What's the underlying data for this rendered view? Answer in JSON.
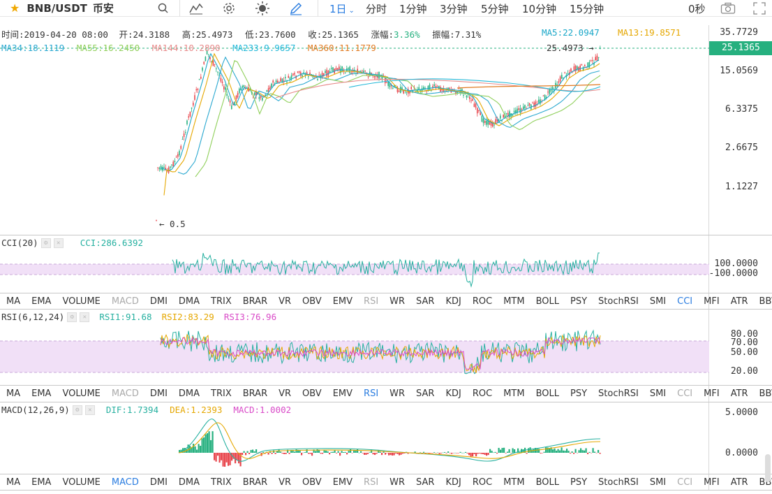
{
  "toolbar": {
    "pair": "BNB/USDT",
    "exchange": "币安",
    "interval_selected": "1日",
    "intervals": [
      "分时",
      "1分钟",
      "3分钟",
      "5分钟",
      "10分钟",
      "15分钟"
    ],
    "timer": "0秒",
    "icons": [
      "search-icon",
      "indicator-icon",
      "settings-icon",
      "theme-icon",
      "draw-icon",
      "camera-icon",
      "fullscreen-icon"
    ]
  },
  "ohlc": {
    "time": "时间:2019-04-20 08:00",
    "open": "开:24.3188",
    "high": "高:25.4973",
    "low": "低:23.7600",
    "close": "收:25.1365",
    "change_label": "涨幅:",
    "change": "3.36%",
    "amplitude": "振幅:7.31%"
  },
  "ma": {
    "ma5": "MA5:22.0947",
    "ma13": "MA13:19.8571",
    "ma34": "MA34:18.1119",
    "ma55": "MA55:16.2450",
    "ma144": "MA144:10.2890",
    "ma233": "MA233:9.9657",
    "ma360": "MA360:11.1779"
  },
  "main": {
    "high_marker": "25.4973 →",
    "low_marker": "← 0.5",
    "last_price": "25.1365",
    "axis": [
      "35.7729",
      "15.0569",
      "6.3375",
      "2.6675",
      "1.1227"
    ]
  },
  "cci": {
    "title": "CCI(20)",
    "value": "CCI:286.6392",
    "axis": [
      "100.0000",
      "-100.0000"
    ]
  },
  "rsi": {
    "title": "RSI(6,12,24)",
    "rsi1": "RSI1:91.68",
    "rsi2": "RSI2:83.29",
    "rsi3": "RSI3:76.96",
    "axis": [
      "80.00",
      "70.00",
      "50.00",
      "20.00"
    ]
  },
  "macd": {
    "title": "MACD(12,26,9)",
    "dif": "DIF:1.7394",
    "dea": "DEA:1.2393",
    "macd": "MACD:1.0002",
    "axis": [
      "5.0000",
      "0.0000"
    ]
  },
  "indicator_tabs": [
    "MA",
    "EMA",
    "VOLUME",
    "MACD",
    "DMI",
    "DMA",
    "TRIX",
    "BRAR",
    "VR",
    "OBV",
    "EMV",
    "RSI",
    "WR",
    "SAR",
    "KDJ",
    "ROC",
    "MTM",
    "BOLL",
    "PSY",
    "StochRSI",
    "SMI",
    "CCI",
    "MFI",
    "ATR",
    "BBW"
  ],
  "tab_rows": [
    {
      "active": "CCI",
      "dim": [
        "MACD",
        "RSI"
      ]
    },
    {
      "active": "RSI",
      "dim": [
        "MACD",
        "CCI"
      ]
    },
    {
      "active": "MACD",
      "dim": [
        "RSI",
        "CCI"
      ]
    }
  ],
  "colors": {
    "up": "#26b07f",
    "down": "#e8464d",
    "ma5": "#1aa7c8",
    "ma13": "#e5a700",
    "ma34": "#2aa8d0",
    "ma55": "#8fcf5a",
    "ma144": "#e88a8a",
    "ma233": "#22b8d8",
    "ma360": "#e07a20",
    "active_blue": "#2b7de0",
    "band": "#f1e0f7"
  }
}
